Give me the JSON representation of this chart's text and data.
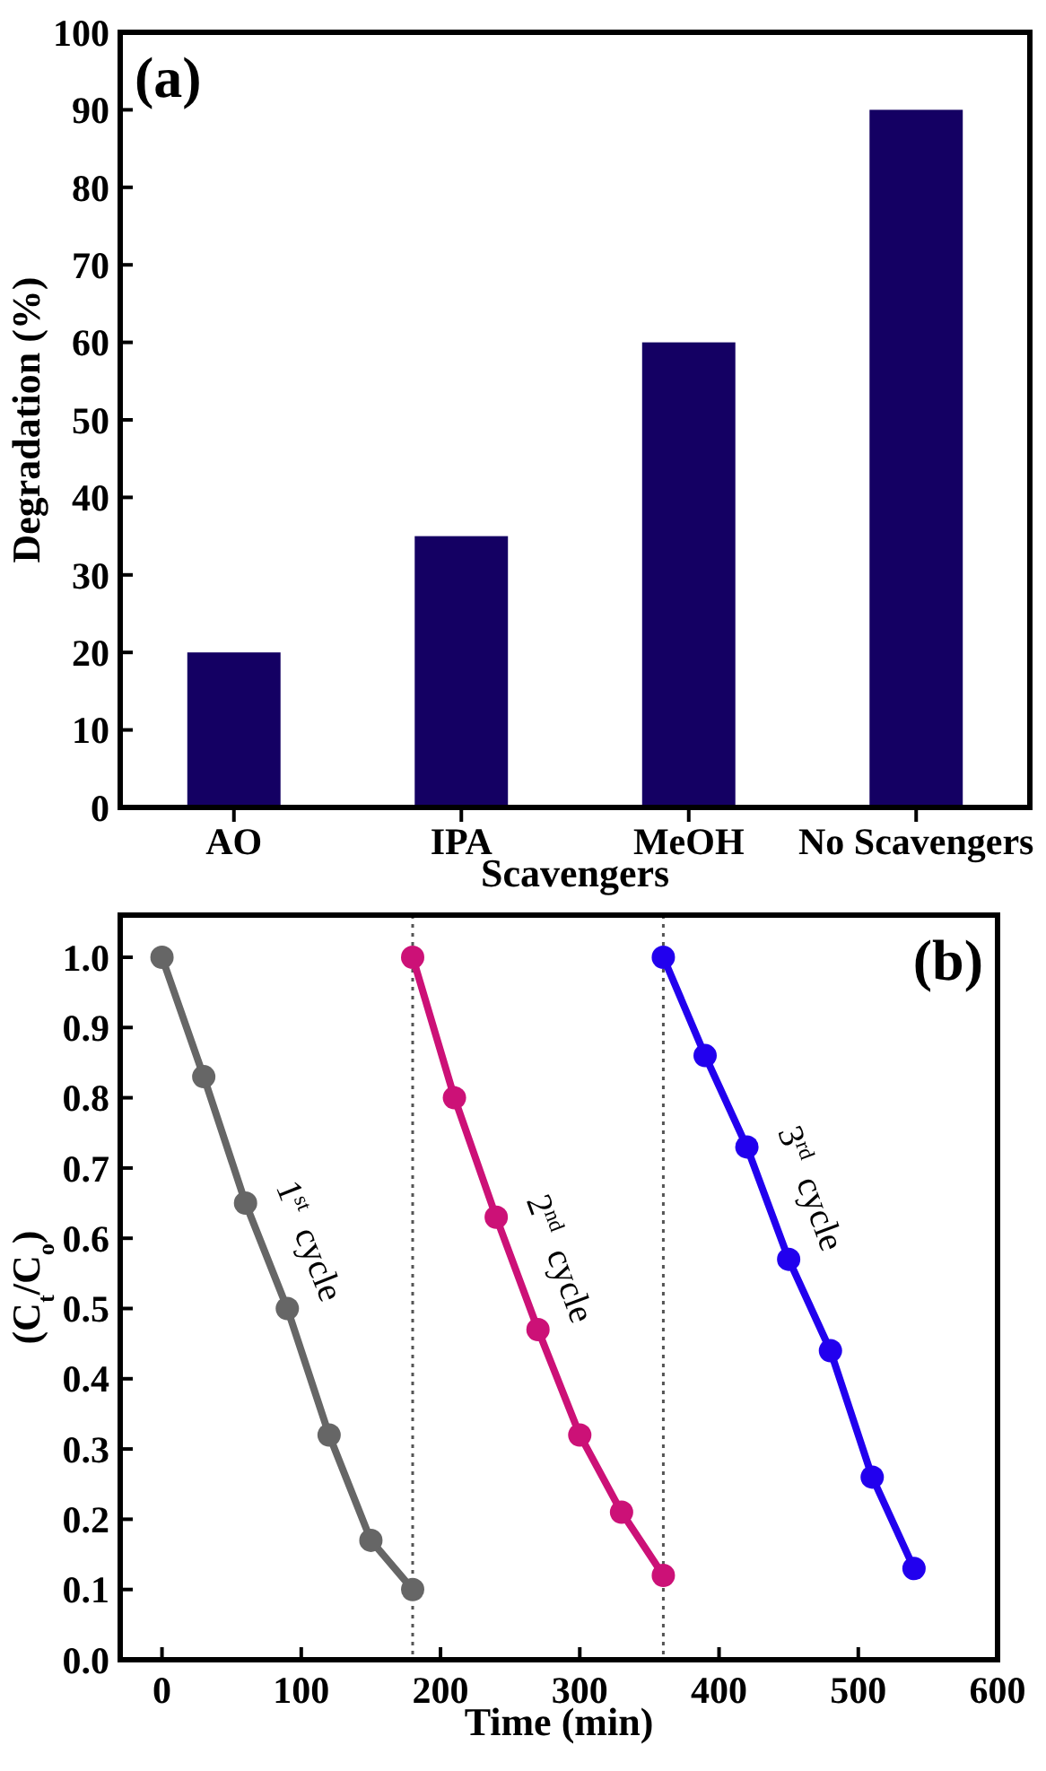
{
  "chart_data": [
    {
      "type": "bar",
      "categories": [
        "AO",
        "IPA",
        "MeOH",
        "No Scavengers"
      ],
      "values": [
        20,
        35,
        60,
        90
      ],
      "color": "#140063",
      "xlabel": "Scavengers",
      "ylabel": "Degradation (%)",
      "ylim": [
        0,
        100
      ],
      "yticks": [
        0,
        10,
        20,
        30,
        40,
        50,
        60,
        70,
        80,
        90,
        100
      ],
      "annotations": [
        "(a)"
      ]
    },
    {
      "type": "line",
      "xlabel": "Time (min)",
      "ylabel": "(C$_{t}$/C$_{o}$)",
      "marker": "circle",
      "line_style": "solid",
      "xlim": [
        -30,
        600
      ],
      "xticks": [
        0,
        100,
        200,
        300,
        400,
        500,
        600
      ],
      "ylim": [
        0,
        1.06
      ],
      "yticks": [
        {
          "value": 0,
          "label": "0.0"
        },
        {
          "value": 0.1,
          "label": "0.1"
        },
        {
          "value": 0.2,
          "label": "0.2"
        },
        {
          "value": 0.3,
          "label": "0.3"
        },
        {
          "value": 0.4,
          "label": "0.4"
        },
        {
          "value": 0.5,
          "label": "0.5"
        },
        {
          "value": 0.6,
          "label": "0.6"
        },
        {
          "value": 0.7,
          "label": "0.7"
        },
        {
          "value": 0.8,
          "label": "0.8"
        },
        {
          "value": 0.9,
          "label": "0.9"
        },
        {
          "value": 1,
          "label": "1.0"
        }
      ],
      "series": [
        {
          "name": "1$^{st}$ cycle",
          "color": "#666666",
          "x": [
            0,
            30,
            60,
            90,
            120,
            150,
            180
          ],
          "values": [
            1.0,
            0.83,
            0.65,
            0.5,
            0.32,
            0.17,
            0.1
          ]
        },
        {
          "name": "2$^{nd}$ cycle",
          "color": "#cc1177",
          "x": [
            180,
            210,
            240,
            270,
            300,
            330,
            360
          ],
          "values": [
            1.0,
            0.8,
            0.63,
            0.47,
            0.32,
            0.21,
            0.12
          ]
        },
        {
          "name": "3$^{rd}$ cycle",
          "color": "#2200ee",
          "x": [
            360,
            390,
            420,
            450,
            480,
            510,
            540
          ],
          "values": [
            1.0,
            0.86,
            0.73,
            0.57,
            0.44,
            0.26,
            0.13
          ]
        }
      ],
      "ref_lines": [
        {
          "axis": "x",
          "value": 180,
          "color": "#555555",
          "line_style": "dotted"
        },
        {
          "axis": "x",
          "value": 360,
          "color": "#555555",
          "line_style": "dotted"
        }
      ],
      "annotations": [
        "(b)"
      ]
    }
  ]
}
